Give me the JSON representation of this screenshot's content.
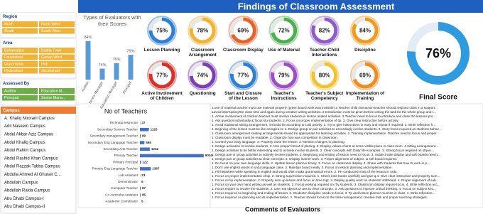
{
  "title": "Findings of Classroom Assessment",
  "slicers": [
    {
      "title": "Region",
      "items": [
        "North",
        "North West",
        "South",
        "South West"
      ]
    },
    {
      "title": "Area",
      "items": [
        "Bahawalpur",
        "Baldia Town",
        "Faisalabad",
        "Gadap West",
        "Gujranwala",
        "Hub",
        "Hyderabad",
        "Jacobabad"
      ]
    },
    {
      "title": "Assessed By",
      "items": [
        "Auditor",
        "Education M...",
        "Principal",
        "Senior Mana..."
      ]
    },
    {
      "title": "Campus",
      "items": [
        "A. Khaliq Noorani Campus",
        "Adil Naseem Campus",
        "Abdul Akbar Aziz Campus",
        "Abdul Khaliq Campus",
        "Abdul Rahim Campus",
        "Abdul Rashid Khan Campus",
        "Abdul Razzak Tabba Campus",
        "Abdulla Ahmed Al Ghurair C...",
        "Abdullah Campus",
        "Abdullah Rakla Campus",
        "Abu Dhabi Campus-I",
        "Abu Dhabi Campus-II"
      ]
    }
  ],
  "chart_data": [
    {
      "type": "bar",
      "title": "Types of Evaluators with their Scores",
      "categories": [
        "Auditor",
        "Senior Manager",
        "Education Manager",
        "Principal"
      ],
      "values": [
        84,
        74,
        76,
        79
      ],
      "value_labels": [
        "84%",
        "74%",
        "76%",
        "79%"
      ],
      "color": "#5b9bd5",
      "ylim": [
        70,
        86
      ]
    },
    {
      "type": "donut",
      "categories": [
        "Lesson Planning",
        "Classroom Arrangement",
        "Classroom Display",
        "Use of Material",
        "Teacher-Child Interactions",
        "Discipline",
        "Active Involvement of Children",
        "Questioning",
        "Start and Closure of the Lesson",
        "Teacher's Instructions",
        "Teacher's Subject Competency",
        "Implementation of Training"
      ],
      "values": [
        75,
        78,
        69,
        72,
        82,
        84,
        77,
        74,
        77,
        79,
        80,
        69
      ],
      "value_labels": [
        "75%",
        "78%",
        "69%",
        "72%",
        "82%",
        "84%",
        "77%",
        "74%",
        "77%",
        "79%",
        "80%",
        "69%"
      ],
      "colors": [
        "#2f7fd6",
        "#f2b233",
        "#e8632b",
        "#4caf50",
        "#8e5bc8",
        "#f29a1f",
        "#d9322b",
        "#7b3fb5",
        "#2f7fd6",
        "#9c4fc4",
        "#f2c230",
        "#f28c1f"
      ]
    },
    {
      "type": "gauge",
      "title": "Final Score",
      "values": [
        76
      ],
      "value_labels": [
        "76%"
      ],
      "color": "#2e9be0"
    },
    {
      "type": "hbar",
      "title": "No of Teachers",
      "categories": [
        "Technical Instructor",
        "Secondary Science Teacher",
        "Secondary management Teacher",
        "Secondary Eng Language Teacher",
        "Secondary Arts Teacher",
        "Primary Teacher",
        "Primary Principal",
        "Primary Eng Language Teacher",
        "Lab Assistant",
        "Demonstrator",
        "Computer Teacher",
        "Co curricular Assistant",
        "Academic Coordinator"
      ],
      "values": [
        37,
        1125,
        89,
        565,
        1242,
        8034,
        122,
        1367,
        23,
        6,
        87,
        85,
        5
      ],
      "color": "#4472c4",
      "xlim": [
        0,
        8500
      ]
    }
  ],
  "comments": {
    "title": "Comments of Evaluators",
    "lines": [
      "1.use of material teacher must use material properly (green board work was invisible) 2.Teacher child interaction teacher should respond class in a support...",
      "1avoid interrupting the class time and again during creative writing activities. 2.Introduction must be given before writing the task for the whole group and t...",
      "1. Active involvement of children teacher must involve students in lesson related activities. 2.Teacher need to focus to introduce and close the lessons pro...",
      "1. Ask question individually & focus stu students. 2. Focus on proper implementation of tip. 3. Give clear instruction before activity.",
      "1. Avoid traditional sitting arrangement, it should be according to cobl activity. 2. Try to give instructions in easy and repeat if required. 3. Write reflection h...",
      "1. Begining of the lesson must be like energies-er. 2. Design group or pair activities to accordingly involve students. 3. Story focus required as students behav...",
      "1. Classroom arrangement seating arrangements should be appropriate for learning activities. 2. Training implementation. Teacher need to focus and proper...",
      "1. Classroom display must be readable. 2. Organize how was competition in classroom.",
      "1. Control your body language. 2. Properly close the lesson. 3. Mention changes in planning.",
      "1. Design activation to involve students. 2. Use proper format of planing. 3. Display values charts at some visible place in class room. 4.Sitting arrangement...",
      "1. Design activities to be better interesting and to actively involve students. 2. Clear concepts with Daily life examples. 3. Strong focus required on stryve...",
      "1. Design pair or group activities to actively involve students. 2. Beginning and ending of lesson need to focus. 3. Subject wise display and soft boards need t...",
      "1. Design pair or group activities to clear concepts. 2. Display learner work. 3. Proper alignment of subject. & soft board required.",
      "1. Do focus on your own language skills. 2. Update lesson planner timely. 3. Focus on classroom display. 4. Share with students that how to work in p...",
      "1. Don't use english words in urdu language class. 2. Maintain board neatly. 3. Focus on lesson planning and implementation.",
      "1. Fill helpsheet while speaking in english and would often make grammatical errors. 2. PH conducted most of the lesson in urdu.",
      "1. Focus on proper implementation of tip. 2. Strong supervision required. 1. Check note books carefully and give q.4. Give clear instruction and properly sum...",
      "1. Focus on tip implementation. 2. Properly sum up lesson and focus on time mgt. 3. Display quality work on students' softboard. 4. Proper alignment of sub...",
      "1. Focus on your own hand writing as well as students. 2. Focus working required on rhy students. 3. Classroom display require focus. 4. Write reflection acc...",
      "1. Focus require to involve the students. 2. Use real objects or ans to clear concepts. 3. Ask questions to improve critical thinking. 4. Focus on subject kno...",
      "1. Focus required on beginning and ending of lesson. 2. Students' discipline needs to focus. 3. Tp and lesson planner must be in class. 4. Write reflection...",
      "1. Focus required on planning and its implementation. 2. Teacher should focus on the time management, creative task and proper teaching strategies."
    ]
  }
}
